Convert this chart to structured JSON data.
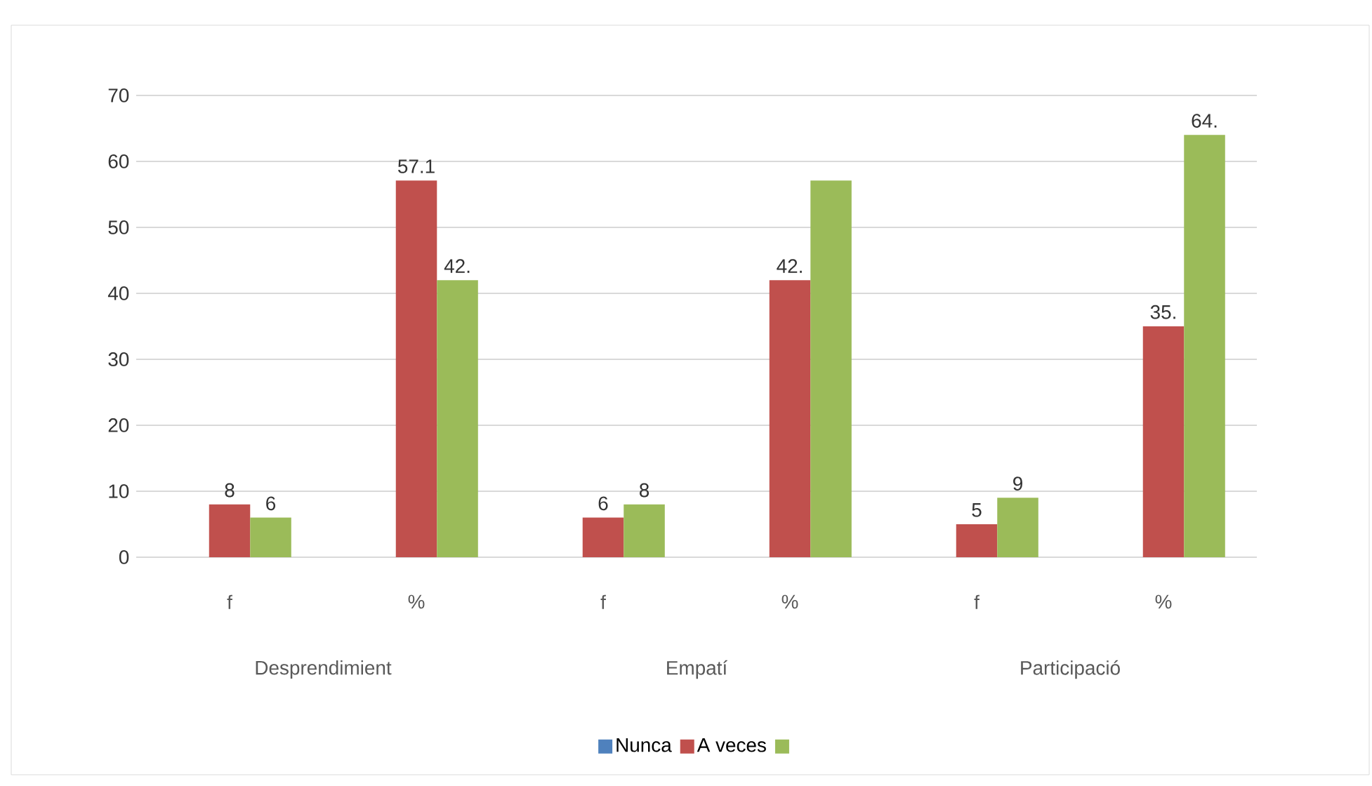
{
  "chart_data": {
    "type": "bar",
    "categories": [
      "f",
      "%",
      "f",
      "%",
      "f",
      "%"
    ],
    "series": [
      {
        "name": "Nunca",
        "color": "#4f81bd",
        "values": [
          0,
          0,
          0,
          0,
          0,
          0
        ]
      },
      {
        "name": "A veces",
        "color": "#c0504d",
        "values": [
          8,
          57.1,
          6,
          42,
          5,
          35
        ],
        "value_labels": [
          "8",
          "57.1",
          "6",
          "42.",
          "5",
          "35."
        ]
      },
      {
        "color": "#9bbb59",
        "values": [
          6,
          42,
          8,
          57.1,
          9,
          64
        ],
        "value_labels": [
          "6",
          "42.",
          "8",
          null,
          "9",
          "64."
        ]
      }
    ],
    "ylim": [
      0,
      70
    ],
    "yticks": [
      0,
      10,
      20,
      30,
      40,
      50,
      60,
      70
    ],
    "grid": "y",
    "legend": "bottom",
    "annotations": [
      "Desprendimient",
      "Empatí",
      "Participació"
    ]
  }
}
